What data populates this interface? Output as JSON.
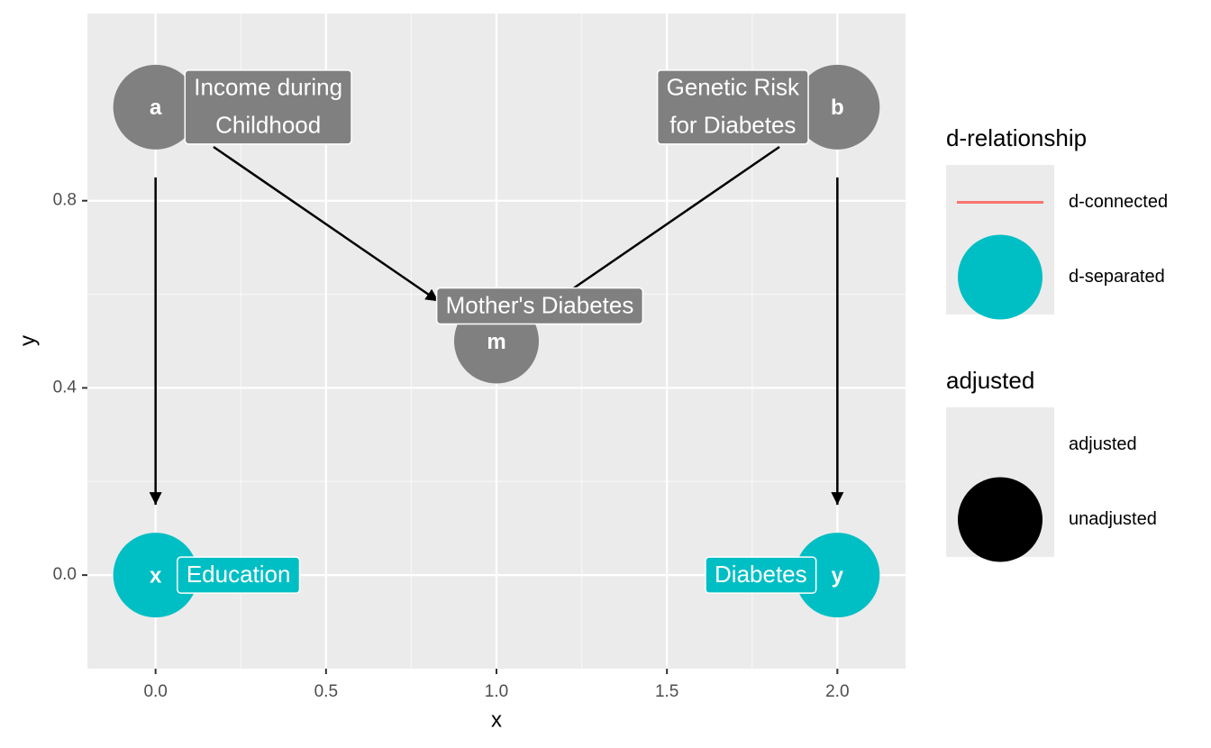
{
  "chart_data": {
    "type": "dag",
    "x_label": "x",
    "y_label": "y",
    "xlim": [
      -0.2,
      2.2
    ],
    "ylim": [
      -0.2,
      1.2
    ],
    "xticks": [
      {
        "value": 0,
        "label": "0.0"
      },
      0.5,
      {
        "value": 1,
        "label": "1.0"
      },
      1.5,
      {
        "value": 2,
        "label": "2.0"
      }
    ],
    "yticks": [
      {
        "value": 0,
        "label": "0.0"
      },
      0.4,
      0.8
    ],
    "grid": true,
    "node_color": "#808080",
    "nodes": [
      {
        "name": "a",
        "label": [
          "Income during",
          "Childhood"
        ],
        "x": 0,
        "y": 1
      },
      {
        "name": "b",
        "label": [
          "Genetic Risk",
          "for Diabetes"
        ],
        "x": 2,
        "y": 1
      },
      {
        "name": "m",
        "label": [
          "Mother's Diabetes"
        ],
        "x": 1,
        "y": 0.5
      },
      {
        "name": "x",
        "label": [
          "Education"
        ],
        "x": 0,
        "y": 0,
        "status": "d-separated"
      },
      {
        "name": "y",
        "label": [
          "Diabetes"
        ],
        "x": 2,
        "y": 0,
        "status": "d-separated"
      }
    ],
    "edges": [
      {
        "from": "a",
        "to": "x"
      },
      {
        "from": "a",
        "to": "m"
      },
      {
        "from": "b",
        "to": "m"
      },
      {
        "from": "b",
        "to": "y"
      }
    ],
    "legends": [
      {
        "title": "d-relationship",
        "items": [
          {
            "label": "d-connected",
            "color": "#f8766d",
            "key": "line"
          },
          {
            "label": "d-separated",
            "color": "#00bfc4",
            "key": "point"
          }
        ]
      },
      {
        "title": "adjusted",
        "items": [
          {
            "label": "adjusted"
          },
          {
            "label": "unadjusted",
            "color": "#000000",
            "key": "point"
          }
        ]
      }
    ]
  }
}
